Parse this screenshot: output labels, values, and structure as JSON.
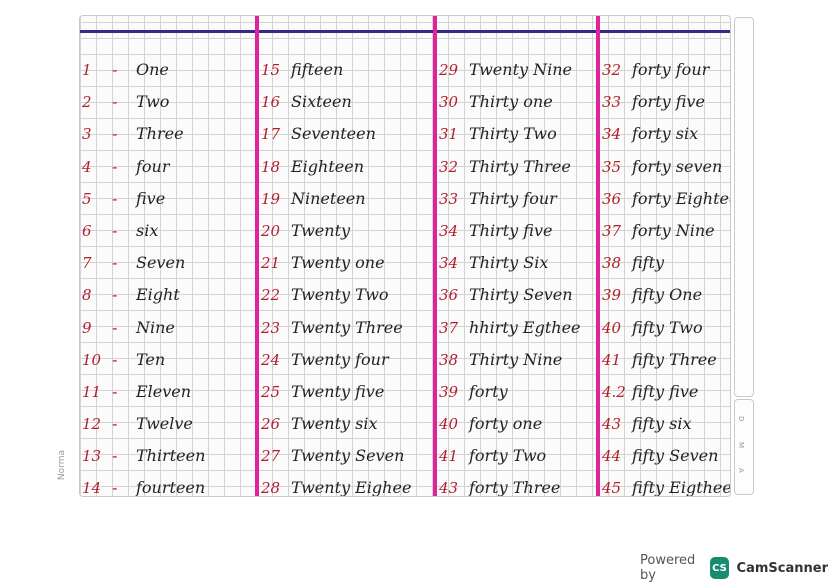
{
  "columns": [
    {
      "rows": [
        {
          "num": "1",
          "dash": "-",
          "word": "One"
        },
        {
          "num": "2",
          "dash": "-",
          "word": "Two"
        },
        {
          "num": "3",
          "dash": "-",
          "word": "Three"
        },
        {
          "num": "4",
          "dash": "-",
          "word": "four"
        },
        {
          "num": "5",
          "dash": "-",
          "word": "five"
        },
        {
          "num": "6",
          "dash": "-",
          "word": "six"
        },
        {
          "num": "7",
          "dash": "-",
          "word": "Seven"
        },
        {
          "num": "8",
          "dash": "-",
          "word": "Eight"
        },
        {
          "num": "9",
          "dash": "-",
          "word": "Nine"
        },
        {
          "num": "10",
          "dash": "-",
          "word": "Ten"
        },
        {
          "num": "11",
          "dash": "-",
          "word": "Eleven"
        },
        {
          "num": "12",
          "dash": "-",
          "word": "Twelve"
        },
        {
          "num": "13",
          "dash": "-",
          "word": "Thirteen"
        },
        {
          "num": "14",
          "dash": "-",
          "word": "fourteen"
        }
      ]
    },
    {
      "rows": [
        {
          "num": "15",
          "word": "fifteen"
        },
        {
          "num": "16",
          "word": "Sixteen"
        },
        {
          "num": "17",
          "word": "Seventeen"
        },
        {
          "num": "18",
          "word": "Eighteen"
        },
        {
          "num": "19",
          "word": "Nineteen"
        },
        {
          "num": "20",
          "word": "Twenty"
        },
        {
          "num": "21",
          "word": "Twenty one"
        },
        {
          "num": "22",
          "word": "Twenty Two"
        },
        {
          "num": "23",
          "word": "Twenty Three"
        },
        {
          "num": "24",
          "word": "Twenty four"
        },
        {
          "num": "25",
          "word": "Twenty five"
        },
        {
          "num": "26",
          "word": "Twenty six"
        },
        {
          "num": "27",
          "word": "Twenty Seven"
        },
        {
          "num": "28",
          "word": "Twenty Eighee"
        }
      ]
    },
    {
      "rows": [
        {
          "num": "29",
          "word": "Twenty Nine"
        },
        {
          "num": "30",
          "word": "Thirty one"
        },
        {
          "num": "31",
          "word": "Thirty Two"
        },
        {
          "num": "32",
          "word": "Thirty Three"
        },
        {
          "num": "33",
          "word": "Thirty four"
        },
        {
          "num": "34",
          "word": "Thirty five"
        },
        {
          "num": "34",
          "word": "Thirty Six"
        },
        {
          "num": "36",
          "word": "Thirty Seven"
        },
        {
          "num": "37",
          "word": "hhirty Egthee"
        },
        {
          "num": "38",
          "word": "Thirty Nine"
        },
        {
          "num": "39",
          "word": "forty"
        },
        {
          "num": "40",
          "word": "forty one"
        },
        {
          "num": "41",
          "word": "forty Two"
        },
        {
          "num": "43",
          "word": "forty Three"
        }
      ]
    },
    {
      "rows": [
        {
          "num": "32",
          "word": "forty four"
        },
        {
          "num": "33",
          "word": "forty five"
        },
        {
          "num": "34",
          "word": "forty six"
        },
        {
          "num": "35",
          "word": "forty seven"
        },
        {
          "num": "36",
          "word": "forty Eightee"
        },
        {
          "num": "37",
          "word": "forty Nine"
        },
        {
          "num": "38",
          "word": "fifty"
        },
        {
          "num": "39",
          "word": "fifty One"
        },
        {
          "num": "40",
          "word": "fifty Two"
        },
        {
          "num": "41",
          "word": "fifty Three"
        },
        {
          "num": "4.2",
          "word": "fifty five"
        },
        {
          "num": "43",
          "word": "fifty six"
        },
        {
          "num": "44",
          "word": "fifty Seven"
        },
        {
          "num": "45",
          "word": "fifty Eigthee"
        }
      ]
    }
  ],
  "footer": {
    "powered_by": "Powered by",
    "logo_text": "CS",
    "app_name": "CamScanner"
  },
  "margin_brand": "Norma",
  "side_labels": [
    "D",
    "M",
    "A"
  ],
  "colors": {
    "ink": "#222222",
    "number_red": "#b11f2a",
    "margin_magenta": "#e0239a",
    "top_rule": "#34298a",
    "camscanner_green": "#1a8b73"
  }
}
